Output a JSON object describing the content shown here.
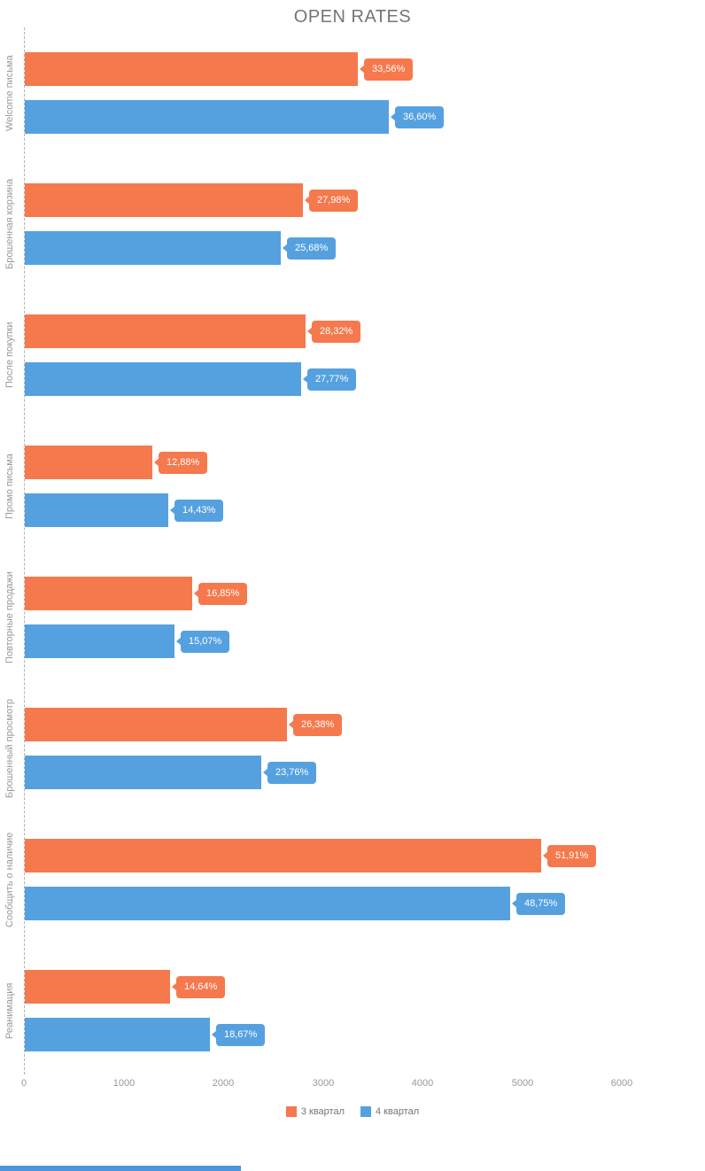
{
  "title": "OPEN RATES",
  "chart_data": {
    "type": "bar",
    "orientation": "horizontal",
    "title": "OPEN RATES",
    "xlabel": "",
    "ylabel": "",
    "xlim": [
      0,
      6000
    ],
    "x_ticks": [
      "0",
      "1000",
      "2000",
      "3000",
      "4000",
      "5000",
      "6000"
    ],
    "grid": false,
    "legend_position": "bottom",
    "categories": [
      "Welcome письма",
      "Брошенная корзина",
      "После покупки",
      "Промо письма",
      "Повторные продажи",
      "Брошенный просмотр",
      "Сообщить о наличие",
      "Реанимация"
    ],
    "series": [
      {
        "name": "3 квартал",
        "color": "#f5794d",
        "values": [
          3340,
          2790,
          2820,
          1280,
          1680,
          2630,
          5180,
          1460
        ],
        "labels": [
          "33,56%",
          "27,98%",
          "28,32%",
          "12,88%",
          "16,85%",
          "26,38%",
          "51,91%",
          "14,64%"
        ]
      },
      {
        "name": "4 квартал",
        "color": "#55a1e0",
        "values": [
          3650,
          2570,
          2770,
          1440,
          1500,
          2370,
          4870,
          1860
        ],
        "labels": [
          "36,60%",
          "25,68%",
          "27,77%",
          "14,43%",
          "15,07%",
          "23,76%",
          "48,75%",
          "18,67%"
        ]
      }
    ]
  }
}
